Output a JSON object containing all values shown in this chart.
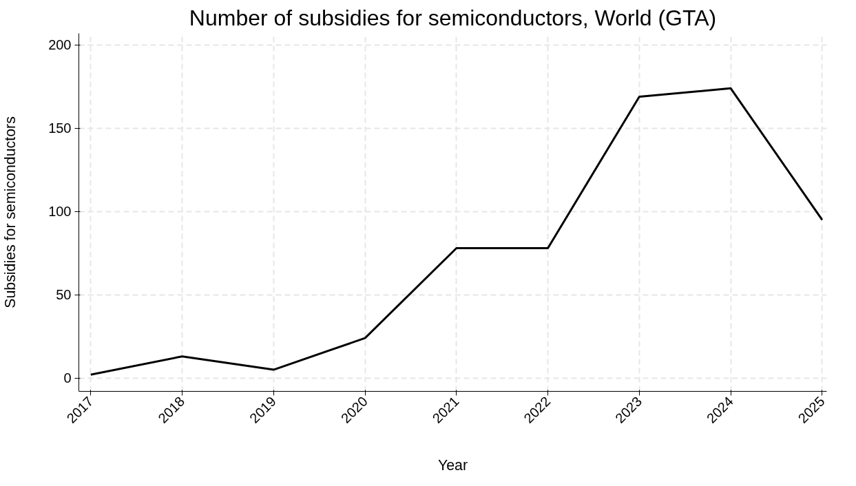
{
  "chart_data": {
    "type": "line",
    "title": "Number of subsidies for semiconductors, World (GTA)",
    "xlabel": "Year",
    "ylabel": "Subsidies for semiconductors",
    "x": [
      2017,
      2018,
      2019,
      2020,
      2021,
      2022,
      2023,
      2024,
      2025
    ],
    "series": [
      {
        "color": "#000000",
        "values": [
          2,
          13,
          5,
          24,
          78,
          78,
          169,
          174,
          95
        ]
      }
    ],
    "xlim": [
      2016.87,
      2025.05
    ],
    "xticks": [
      2017,
      2018,
      2019,
      2020,
      2021,
      2022,
      2023,
      2024,
      2025
    ],
    "ylim": [
      -8,
      207
    ],
    "yticks": [
      0,
      50,
      100,
      150,
      200
    ],
    "grid": true,
    "marker": "none",
    "line_style": "solid"
  }
}
